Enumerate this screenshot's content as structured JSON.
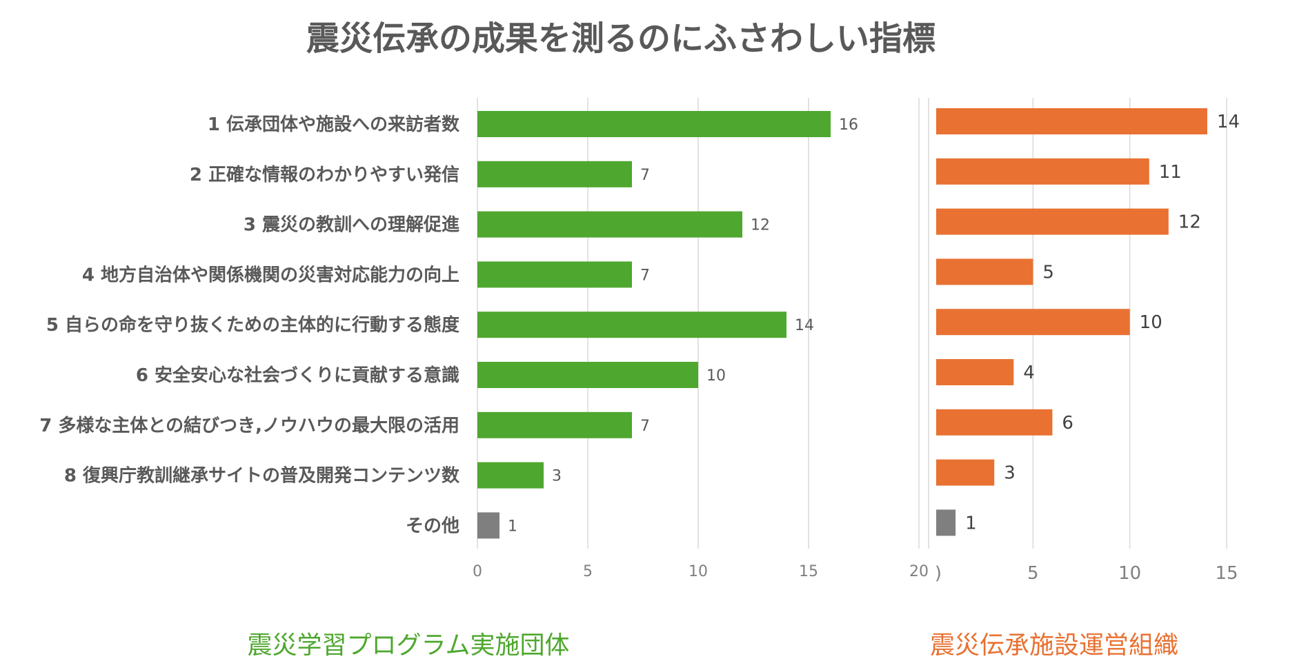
{
  "title": "震災伝承の成果を測るのにふさわしい指標",
  "colors": {
    "green": "#4ea72e",
    "orange": "#e97132",
    "gray": "#7f7f7f"
  },
  "chart_data": [
    {
      "type": "bar",
      "orientation": "horizontal",
      "caption": "震災学習プログラム実施団体",
      "categories": [
        "1 伝承団体や施設への来訪者数",
        "2 正確な情報のわかりやすい発信",
        "3 震災の教訓への理解促進",
        "4 地方自治体や関係機関の災害対応能力の向上",
        "5  自らの命を守り抜くための主体的に行動する態度",
        "6 安全安心な社会づくりに貢献する意識",
        "7 多様な主体との結びつき,ノウハウの最大限の活用",
        "8 復興庁教訓継承サイトの普及開発コンテンツ数",
        "その他"
      ],
      "values": [
        16,
        7,
        12,
        7,
        14,
        10,
        7,
        3,
        1
      ],
      "bar_colors": [
        "green",
        "green",
        "green",
        "green",
        "green",
        "green",
        "green",
        "green",
        "gray"
      ],
      "xlim": [
        0,
        20
      ],
      "ticks": [
        "0",
        "5",
        "10",
        "15",
        "20"
      ],
      "grid": true
    },
    {
      "type": "bar",
      "orientation": "horizontal",
      "caption": "震災伝承施設運営組織",
      "values": [
        14,
        11,
        12,
        5,
        10,
        4,
        6,
        3,
        1
      ],
      "bar_colors": [
        "orange",
        "orange",
        "orange",
        "orange",
        "orange",
        "orange",
        "orange",
        "orange",
        "gray"
      ],
      "xlim": [
        0,
        15
      ],
      "ticks": [
        ")",
        "5",
        "10",
        "15"
      ],
      "grid": true
    }
  ]
}
